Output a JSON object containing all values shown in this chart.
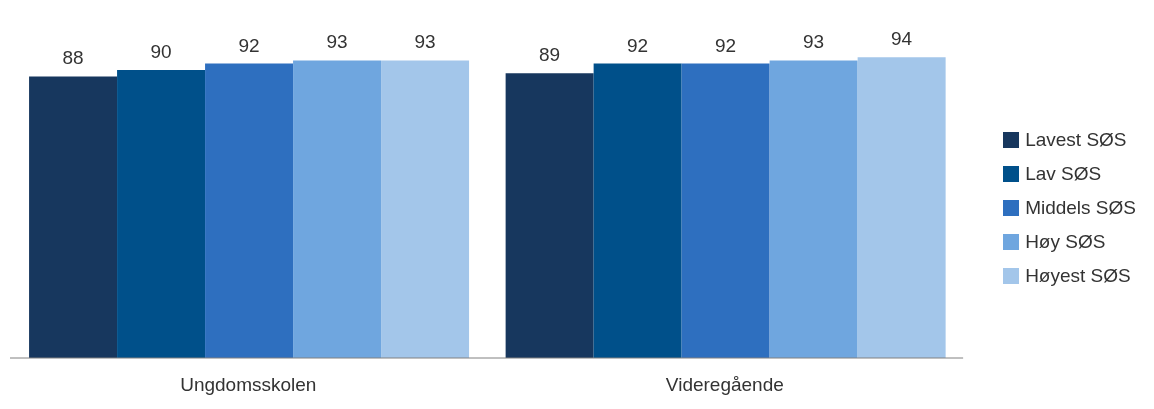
{
  "chart_data": {
    "type": "bar",
    "categories": [
      "Ungdomsskolen",
      "Videregående"
    ],
    "series": [
      {
        "name": "Lavest SØS",
        "color": "#17375e",
        "values": [
          88,
          89
        ]
      },
      {
        "name": "Lav SØS",
        "color": "#00508a",
        "values": [
          90,
          92
        ]
      },
      {
        "name": "Middels SØS",
        "color": "#2e6fbf",
        "values": [
          92,
          92
        ]
      },
      {
        "name": "Høy SØS",
        "color": "#6fa6df",
        "values": [
          93,
          93
        ]
      },
      {
        "name": "Høyest SØS",
        "color": "#a3c6ea",
        "values": [
          93,
          94
        ]
      }
    ],
    "data_labels": true,
    "legend": "right",
    "grid": false
  }
}
